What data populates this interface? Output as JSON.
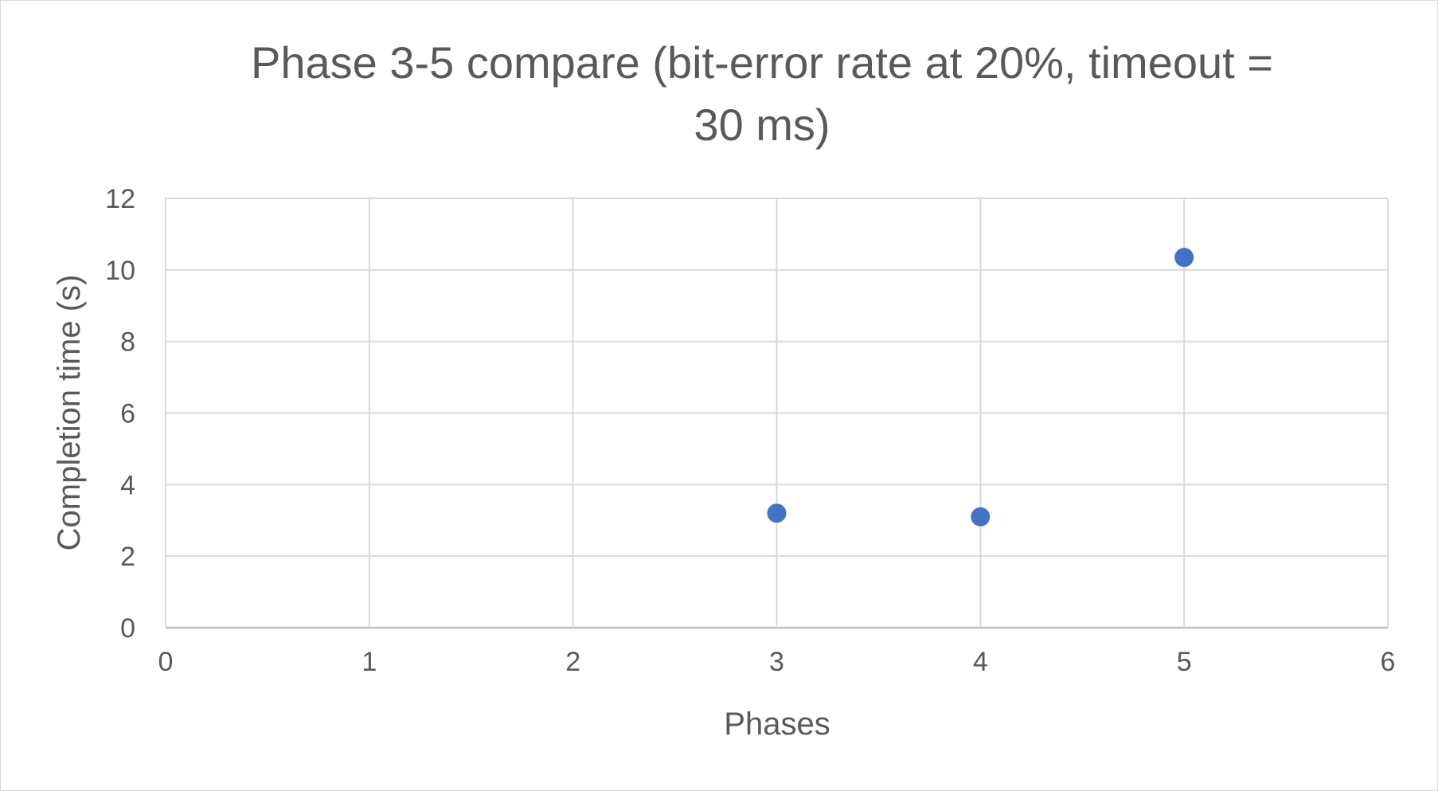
{
  "chart_data": {
    "type": "scatter",
    "title_lines": [
      "Phase 3-5 compare (bit-error rate at 20%, timeout =",
      "30 ms)"
    ],
    "xlabel": "Phases",
    "ylabel": "Completion time (s)",
    "xlim": [
      0,
      6
    ],
    "ylim": [
      0,
      12
    ],
    "x_ticks": [
      0,
      1,
      2,
      3,
      4,
      5,
      6
    ],
    "y_ticks": [
      0,
      2,
      4,
      6,
      8,
      10,
      12
    ],
    "grid": true,
    "legend": "none",
    "series": [
      {
        "x": [
          3,
          4,
          5
        ],
        "y": [
          3.2,
          3.1,
          10.35
        ],
        "color": "#4472c4"
      }
    ]
  }
}
